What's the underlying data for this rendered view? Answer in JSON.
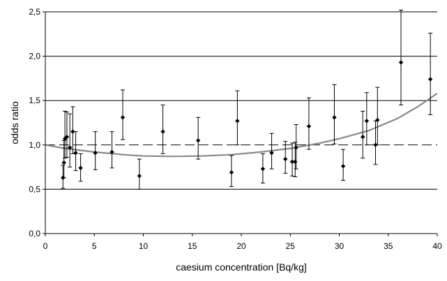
{
  "chart_data": {
    "type": "scatter",
    "title": "",
    "xlabel": "caesium concentration [Bq/kg]",
    "ylabel": "odds ratio",
    "xlim": [
      0,
      40
    ],
    "ylim": [
      0,
      2.5
    ],
    "x_ticks": [
      "0",
      "5",
      "10",
      "15",
      "20",
      "25",
      "30",
      "35",
      "40"
    ],
    "y_ticks": [
      "0,0",
      "0,5",
      "1,0",
      "1,5",
      "2,0",
      "2,5"
    ],
    "grid": "horizontal",
    "legend": "none",
    "reference_line": {
      "y": 1.0,
      "style": "dashed",
      "color": "#000000"
    },
    "series": [
      {
        "type": "points_with_error_bars",
        "color": "#000000",
        "points": [
          {
            "x": 1.8,
            "y": 0.63,
            "lo": 0.51,
            "hi": 0.77
          },
          {
            "x": 1.9,
            "y": 0.8,
            "lo": 0.63,
            "hi": 1.05
          },
          {
            "x": 2.0,
            "y": 1.07,
            "lo": 0.85,
            "hi": 1.38
          },
          {
            "x": 2.2,
            "y": 1.09,
            "lo": 0.86,
            "hi": 1.37
          },
          {
            "x": 2.5,
            "y": 0.97,
            "lo": 0.75,
            "hi": 1.35
          },
          {
            "x": 2.8,
            "y": 1.15,
            "lo": 0.9,
            "hi": 1.43
          },
          {
            "x": 3.1,
            "y": 0.91,
            "lo": 0.71,
            "hi": 1.15
          },
          {
            "x": 3.6,
            "y": 0.74,
            "lo": 0.59,
            "hi": 0.9
          },
          {
            "x": 5.1,
            "y": 0.91,
            "lo": 0.72,
            "hi": 1.15
          },
          {
            "x": 6.8,
            "y": 0.92,
            "lo": 0.74,
            "hi": 1.15
          },
          {
            "x": 7.9,
            "y": 1.31,
            "lo": 1.06,
            "hi": 1.62
          },
          {
            "x": 9.6,
            "y": 0.65,
            "lo": 0.5,
            "hi": 0.84
          },
          {
            "x": 12.0,
            "y": 1.15,
            "lo": 0.9,
            "hi": 1.45
          },
          {
            "x": 15.6,
            "y": 1.05,
            "lo": 0.84,
            "hi": 1.31
          },
          {
            "x": 19.0,
            "y": 0.69,
            "lo": 0.53,
            "hi": 0.88
          },
          {
            "x": 19.6,
            "y": 1.27,
            "lo": 1.0,
            "hi": 1.61
          },
          {
            "x": 22.2,
            "y": 0.73,
            "lo": 0.57,
            "hi": 0.9
          },
          {
            "x": 23.1,
            "y": 0.91,
            "lo": 0.73,
            "hi": 1.13
          },
          {
            "x": 24.5,
            "y": 0.84,
            "lo": 0.68,
            "hi": 1.04
          },
          {
            "x": 25.2,
            "y": 0.81,
            "lo": 0.65,
            "hi": 1.02
          },
          {
            "x": 25.5,
            "y": 0.81,
            "lo": 0.64,
            "hi": 1.03
          },
          {
            "x": 25.6,
            "y": 0.97,
            "lo": 0.73,
            "hi": 1.23
          },
          {
            "x": 26.9,
            "y": 1.21,
            "lo": 0.95,
            "hi": 1.53
          },
          {
            "x": 29.5,
            "y": 1.31,
            "lo": 1.01,
            "hi": 1.68
          },
          {
            "x": 30.4,
            "y": 0.76,
            "lo": 0.6,
            "hi": 0.95
          },
          {
            "x": 32.4,
            "y": 1.09,
            "lo": 0.85,
            "hi": 1.38
          },
          {
            "x": 32.8,
            "y": 1.27,
            "lo": 1.0,
            "hi": 1.59
          },
          {
            "x": 33.7,
            "y": 1.0,
            "lo": 0.78,
            "hi": 1.27
          },
          {
            "x": 33.9,
            "y": 1.28,
            "lo": 1.0,
            "hi": 1.65
          },
          {
            "x": 36.3,
            "y": 1.93,
            "lo": 1.45,
            "hi": 2.52
          },
          {
            "x": 39.3,
            "y": 1.74,
            "lo": 1.34,
            "hi": 2.26
          }
        ]
      },
      {
        "type": "fitted_curve",
        "color": "#888888",
        "x": [
          0,
          2,
          5,
          8,
          10,
          13,
          16,
          19,
          22,
          25,
          28,
          30,
          33,
          36,
          38,
          40
        ],
        "y": [
          1.0,
          0.96,
          0.92,
          0.89,
          0.875,
          0.87,
          0.875,
          0.89,
          0.92,
          0.96,
          1.02,
          1.07,
          1.16,
          1.3,
          1.43,
          1.58
        ]
      }
    ]
  }
}
